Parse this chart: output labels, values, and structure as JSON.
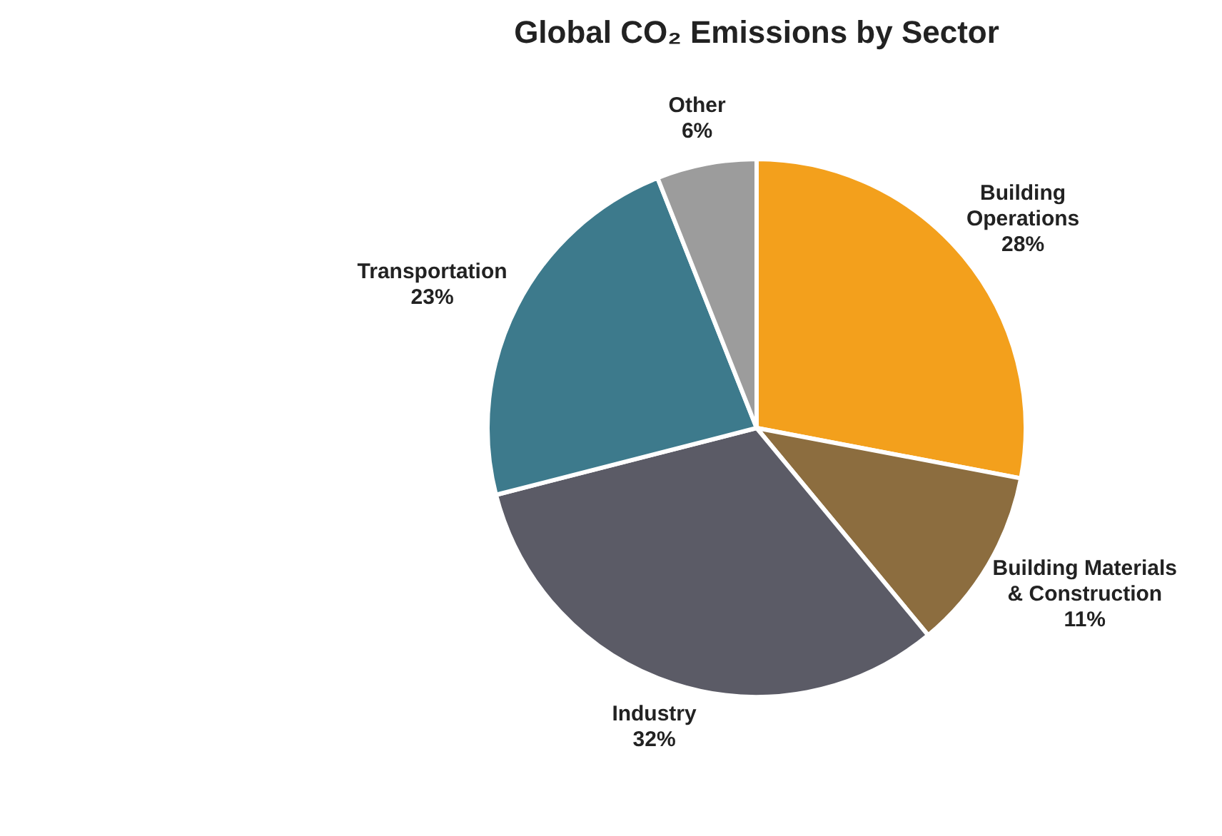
{
  "chart_data": {
    "type": "pie",
    "title": "Global CO₂ Emissions by Sector",
    "categories": [
      "Building Operations",
      "Building Materials & Construction",
      "Industry",
      "Transportation",
      "Other"
    ],
    "values": [
      28,
      11,
      32,
      23,
      6
    ],
    "value_labels": [
      "28%",
      "11%",
      "32%",
      "23%",
      "6%"
    ],
    "colors": [
      "#f3a01c",
      "#8c6d3f",
      "#5b5b66",
      "#3d7a8c",
      "#9c9c9c"
    ],
    "legend": false
  }
}
